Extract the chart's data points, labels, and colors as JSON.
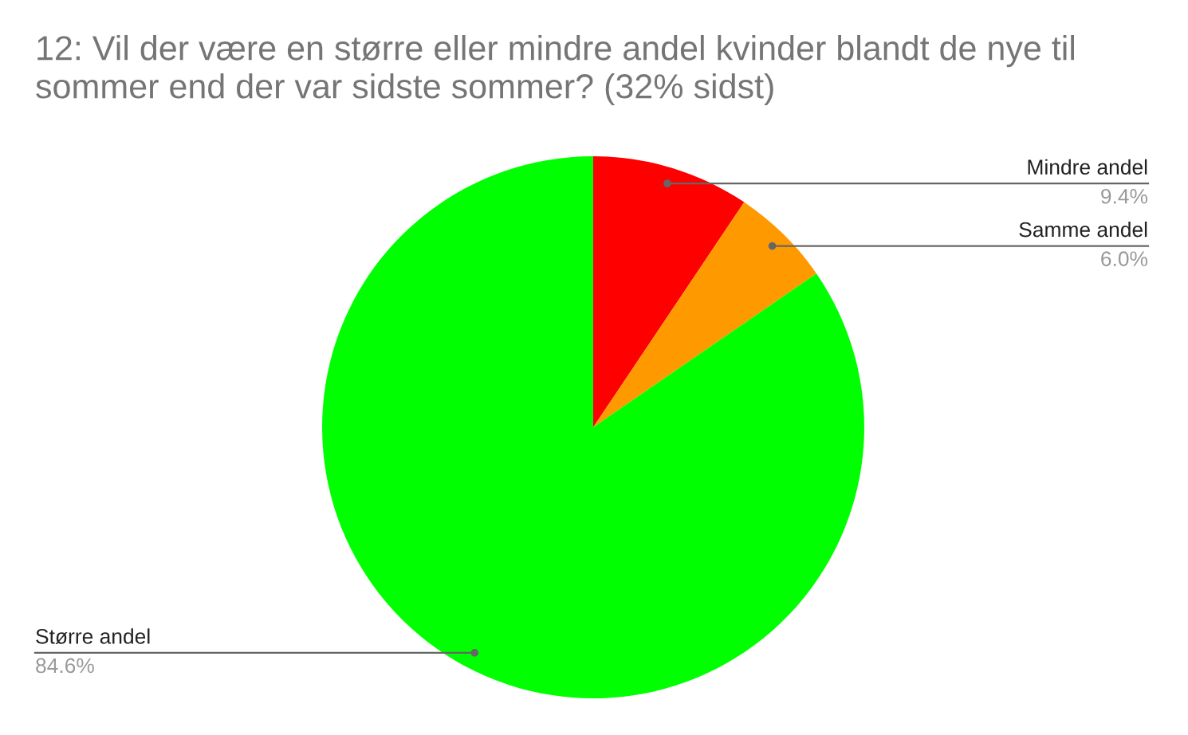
{
  "chart_data": {
    "type": "pie",
    "title": "12: Vil der være en større eller mindre andel kvinder blandt de nye til sommer end der var sidste sommer? (32% sidst)",
    "categories": [
      "Mindre andel",
      "Samme andel",
      "Større andel"
    ],
    "values": [
      9.4,
      6.0,
      84.6
    ],
    "value_labels": [
      "9.4%",
      "6.0%",
      "84.6%"
    ],
    "colors": [
      "#ff0000",
      "#ff9900",
      "#00ff00"
    ]
  }
}
